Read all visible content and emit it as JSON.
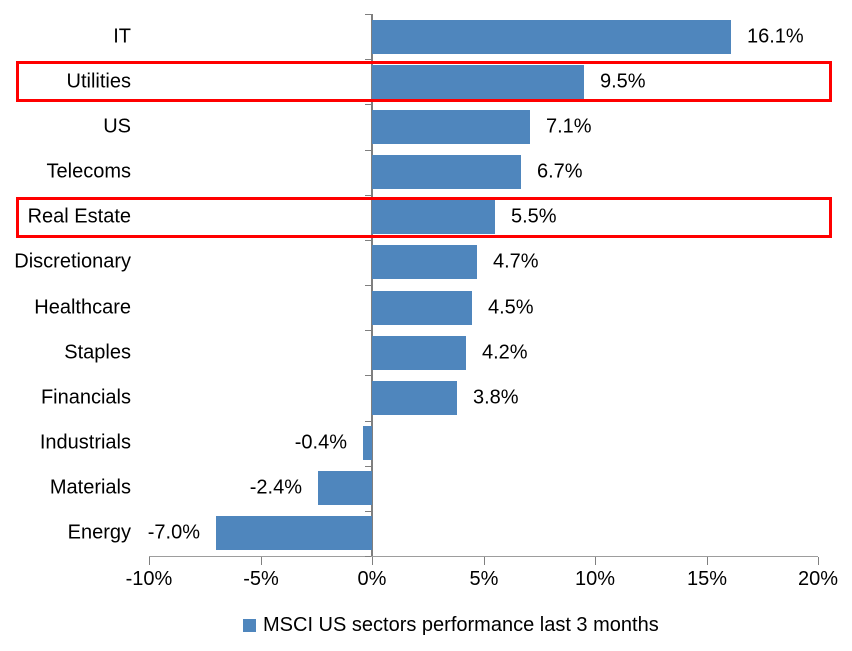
{
  "chart_data": {
    "type": "bar",
    "orientation": "horizontal",
    "title": "",
    "categories": [
      "IT",
      "Utilities",
      "US",
      "Telecoms",
      "Real Estate",
      "Discretionary",
      "Healthcare",
      "Staples",
      "Financials",
      "Industrials",
      "Materials",
      "Energy"
    ],
    "values": [
      16.1,
      9.5,
      7.1,
      6.7,
      5.5,
      4.7,
      4.5,
      4.2,
      3.8,
      -0.4,
      -2.4,
      -7.0
    ],
    "data_labels": [
      "16.1%",
      "9.5%",
      "7.1%",
      "6.7%",
      "5.5%",
      "4.7%",
      "4.5%",
      "4.2%",
      "3.8%",
      "-0.4%",
      "-2.4%",
      "-7.0%"
    ],
    "highlighted_categories": [
      "Utilities",
      "Real Estate"
    ],
    "x_axis": {
      "min": -10,
      "max": 20,
      "ticks": [
        -10,
        -5,
        0,
        5,
        10,
        15,
        20
      ],
      "tick_labels": [
        "-10%",
        "-5%",
        "0%",
        "5%",
        "10%",
        "15%",
        "20%"
      ]
    },
    "grid": false,
    "legend_position": "bottom",
    "legend": {
      "label": "MSCI US sectors performance last 3 months",
      "marker_icon": "square-icon"
    },
    "colors": {
      "bar": "#4F86BD",
      "highlight_border": "#FF0000",
      "axis": "#7F7F7F",
      "text": "#000000",
      "background": "#FFFFFF"
    }
  }
}
